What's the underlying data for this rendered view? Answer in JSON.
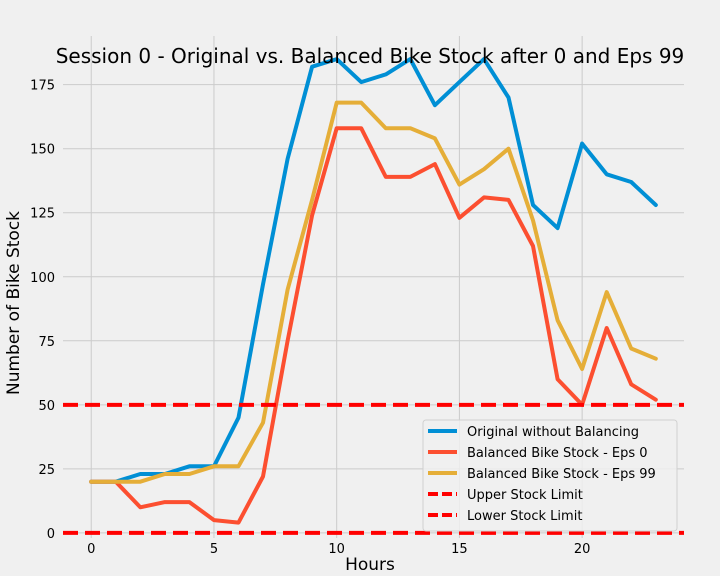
{
  "chart_data": {
    "type": "line",
    "title": "Session 0 - Original vs. Balanced Bike Stock after 0 and Eps 99",
    "xlabel": "Hours",
    "ylabel": "Number of Bike Stock",
    "xlim": [
      -1.15,
      24.15
    ],
    "ylim": [
      -2,
      194
    ],
    "x_ticks": [
      0,
      5,
      10,
      15,
      20
    ],
    "y_ticks": [
      0,
      25,
      50,
      75,
      100,
      125,
      150,
      175
    ],
    "grid": true,
    "legend_position": "lower-right",
    "x": [
      0,
      1,
      2,
      3,
      4,
      5,
      6,
      7,
      8,
      9,
      10,
      11,
      12,
      13,
      14,
      15,
      16,
      17,
      18,
      19,
      20,
      21,
      22,
      23
    ],
    "series": [
      {
        "name": "Original without Balancing",
        "color": "#008fd5",
        "style": "solid",
        "values": [
          20,
          20,
          23,
          23,
          26,
          26,
          45,
          97,
          146,
          182,
          185,
          176,
          179,
          185,
          167,
          176,
          185,
          170,
          128,
          119,
          152,
          140,
          137,
          128
        ]
      },
      {
        "name": "Balanced Bike Stock - Eps 0",
        "color": "#fc4f30",
        "style": "solid",
        "values": [
          20,
          20,
          10,
          12,
          12,
          5,
          4,
          22,
          75,
          124,
          158,
          158,
          139,
          139,
          144,
          123,
          131,
          130,
          112,
          60,
          50,
          80,
          58,
          52
        ]
      },
      {
        "name": "Balanced Bike Stock - Eps 99",
        "color": "#e5ae38",
        "style": "solid",
        "values": [
          20,
          20,
          20,
          23,
          23,
          26,
          26,
          43,
          95,
          130,
          168,
          168,
          158,
          158,
          154,
          136,
          142,
          150,
          122,
          83,
          64,
          94,
          72,
          68
        ]
      },
      {
        "name": "Upper Stock Limit",
        "color": "#ff0000",
        "style": "dashed",
        "hline": 50
      },
      {
        "name": "Lower Stock Limit",
        "color": "#ff0000",
        "style": "dashed",
        "hline": 0
      }
    ]
  }
}
